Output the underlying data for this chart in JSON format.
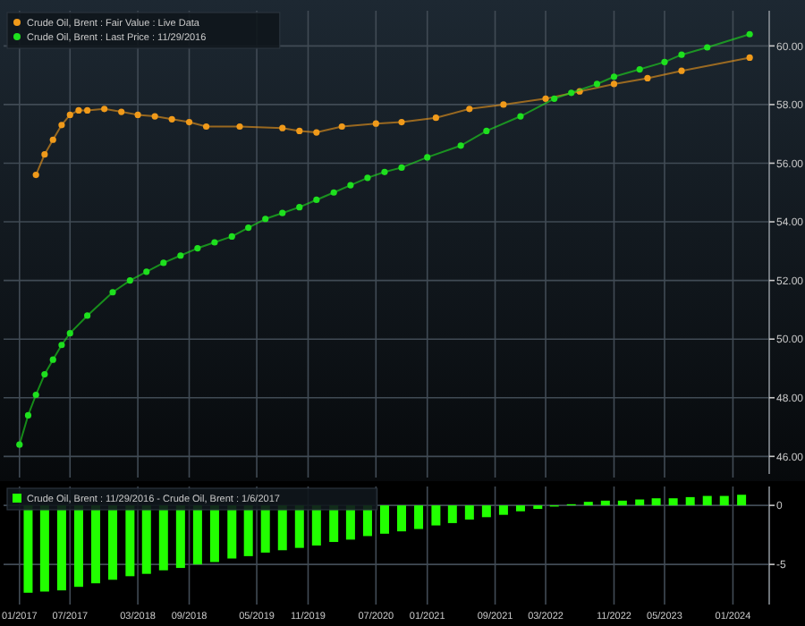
{
  "chart_data": [
    {
      "type": "line",
      "xlim": [
        "2016-11-05",
        "2024-05-10"
      ],
      "ylim": [
        45.4,
        61.2
      ],
      "yticks": [
        {
          "value": 46,
          "label": "46.00"
        },
        {
          "value": 48,
          "label": "48.00"
        },
        {
          "value": 50,
          "label": "50.00"
        },
        {
          "value": 52,
          "label": "52.00"
        },
        {
          "value": 54,
          "label": "54.00"
        },
        {
          "value": 56,
          "label": "56.00"
        },
        {
          "value": 58,
          "label": "58.00"
        },
        {
          "value": 60,
          "label": "60.00"
        }
      ],
      "xticks": [
        {
          "value": "2017-01",
          "label": null
        },
        {
          "value": "2017-07",
          "label": null
        },
        {
          "value": "2018-03",
          "label": null
        },
        {
          "value": "2018-09",
          "label": null
        },
        {
          "value": "2019-05",
          "label": null
        },
        {
          "value": "2019-11",
          "label": null
        },
        {
          "value": "2020-07",
          "label": null
        },
        {
          "value": "2021-01",
          "label": null
        },
        {
          "value": "2021-09",
          "label": null
        },
        {
          "value": "2022-03",
          "label": null
        },
        {
          "value": "2022-11",
          "label": null
        },
        {
          "value": "2023-05",
          "label": null
        },
        {
          "value": "2024-01",
          "label": null
        }
      ],
      "tick_labels": "y",
      "grid": true,
      "legend": "top left",
      "marker": "circle",
      "line_style": "solid",
      "series": [
        {
          "name": "Crude Oil, Brent : Fair Value : Live Data",
          "color": "#f09a1a",
          "x": [
            "2017-03",
            "2017-04",
            "2017-05",
            "2017-06",
            "2017-07",
            "2017-08",
            "2017-09",
            "2017-11",
            "2018-01",
            "2018-03",
            "2018-05",
            "2018-07",
            "2018-09",
            "2018-11",
            "2019-03",
            "2019-08",
            "2019-10",
            "2019-12",
            "2020-03",
            "2020-07",
            "2020-10",
            "2021-02",
            "2021-06",
            "2021-10",
            "2022-03",
            "2022-07",
            "2022-11",
            "2023-03",
            "2023-07",
            "2024-03"
          ],
          "values": [
            55.6,
            56.3,
            56.8,
            57.3,
            57.65,
            57.8,
            57.8,
            57.85,
            57.75,
            57.65,
            57.6,
            57.5,
            57.4,
            57.25,
            57.25,
            57.2,
            57.1,
            57.05,
            57.25,
            57.35,
            57.4,
            57.55,
            57.85,
            58.0,
            58.2,
            58.45,
            58.7,
            58.9,
            59.15,
            59.6
          ]
        },
        {
          "name": "Crude Oil, Brent : Last Price : 11/29/2016",
          "color": "#1ee01e",
          "x": [
            "2017-01",
            "2017-02",
            "2017-03",
            "2017-04",
            "2017-05",
            "2017-06",
            "2017-07",
            "2017-09",
            "2017-12",
            "2018-02",
            "2018-04",
            "2018-06",
            "2018-08",
            "2018-10",
            "2018-12",
            "2019-02",
            "2019-04",
            "2019-06",
            "2019-08",
            "2019-10",
            "2019-12",
            "2020-02",
            "2020-04",
            "2020-06",
            "2020-08",
            "2020-10",
            "2021-01",
            "2021-05",
            "2021-08",
            "2021-12",
            "2022-04",
            "2022-06",
            "2022-09",
            "2022-11",
            "2023-02",
            "2023-05",
            "2023-07",
            "2023-10",
            "2024-03"
          ],
          "values": [
            46.4,
            47.4,
            48.1,
            48.8,
            49.3,
            49.8,
            50.2,
            50.8,
            51.6,
            52.0,
            52.3,
            52.6,
            52.85,
            53.1,
            53.3,
            53.5,
            53.8,
            54.1,
            54.3,
            54.5,
            54.75,
            55.0,
            55.25,
            55.5,
            55.7,
            55.85,
            56.2,
            56.6,
            57.1,
            57.6,
            58.2,
            58.4,
            58.7,
            58.95,
            59.2,
            59.45,
            59.7,
            59.95,
            60.4
          ]
        }
      ]
    },
    {
      "type": "bar",
      "xlim": [
        "2016-11-05",
        "2024-05-10"
      ],
      "ylim": [
        -8.4,
        1.6
      ],
      "yticks": [
        -5,
        0
      ],
      "xticks": [
        {
          "value": "2017-01",
          "label": "01/2017"
        },
        {
          "value": "2017-07",
          "label": "07/2017"
        },
        {
          "value": "2018-03",
          "label": "03/2018"
        },
        {
          "value": "2018-09",
          "label": "09/2018"
        },
        {
          "value": "2019-05",
          "label": "05/2019"
        },
        {
          "value": "2019-11",
          "label": "11/2019"
        },
        {
          "value": "2020-07",
          "label": "07/2020"
        },
        {
          "value": "2021-01",
          "label": "01/2021"
        },
        {
          "value": "2021-09",
          "label": "09/2021"
        },
        {
          "value": "2022-03",
          "label": "03/2022"
        },
        {
          "value": "2022-11",
          "label": "11/2022"
        },
        {
          "value": "2023-05",
          "label": "05/2023"
        },
        {
          "value": "2024-01",
          "label": "01/2024"
        }
      ],
      "grid": true,
      "legend": "top left",
      "series": [
        {
          "name": "Crude Oil, Brent : 11/29/2016 - Crude Oil, Brent : 1/6/2017",
          "color": "#22ff00",
          "x": [
            "2017-02",
            "2017-04",
            "2017-06",
            "2017-08",
            "2017-10",
            "2017-12",
            "2018-02",
            "2018-04",
            "2018-06",
            "2018-08",
            "2018-10",
            "2018-12",
            "2019-02",
            "2019-04",
            "2019-06",
            "2019-08",
            "2019-10",
            "2019-12",
            "2020-02",
            "2020-04",
            "2020-06",
            "2020-08",
            "2020-10",
            "2020-12",
            "2021-02",
            "2021-04",
            "2021-06",
            "2021-08",
            "2021-10",
            "2021-12",
            "2022-02",
            "2022-04",
            "2022-06",
            "2022-08",
            "2022-10",
            "2022-12",
            "2023-02",
            "2023-04",
            "2023-06",
            "2023-08",
            "2023-10",
            "2023-12",
            "2024-02"
          ],
          "values": [
            -7.4,
            -7.3,
            -7.2,
            -6.9,
            -6.6,
            -6.3,
            -6.0,
            -5.8,
            -5.5,
            -5.3,
            -5.0,
            -4.8,
            -4.5,
            -4.3,
            -4.0,
            -3.8,
            -3.6,
            -3.4,
            -3.1,
            -2.9,
            -2.6,
            -2.4,
            -2.2,
            -2.0,
            -1.7,
            -1.5,
            -1.2,
            -1.0,
            -0.8,
            -0.5,
            -0.3,
            -0.1,
            0.1,
            0.3,
            0.4,
            0.4,
            0.5,
            0.6,
            0.6,
            0.7,
            0.8,
            0.8,
            0.9
          ]
        }
      ]
    }
  ]
}
